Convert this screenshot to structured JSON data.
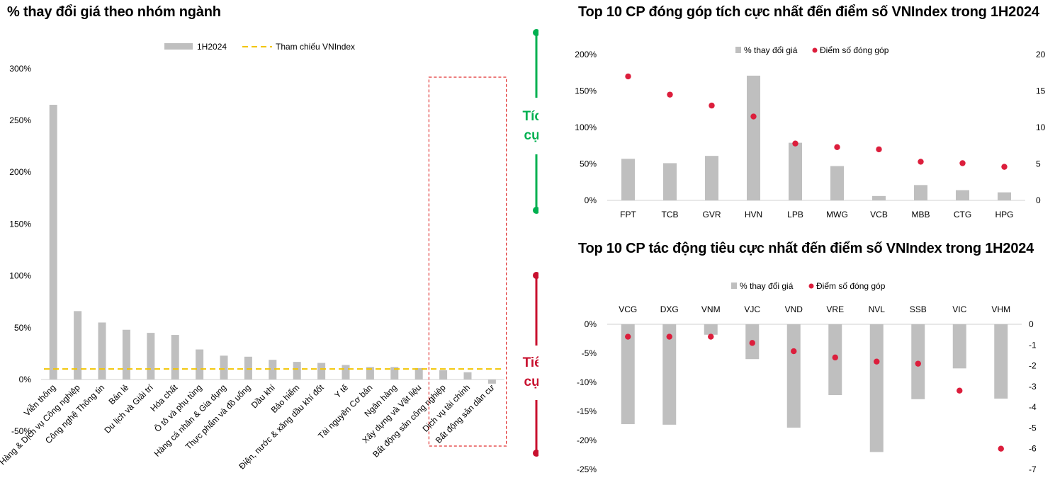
{
  "chart_data": [
    {
      "type": "bar",
      "title": "% thay đổi giá theo nhóm ngành",
      "legend": [
        "1H2024",
        "Tham chiếu VNIndex"
      ],
      "legend_placement": "top-center",
      "categories": [
        "Viễn thông",
        "Hàng & Dịch vụ Công nghiệp",
        "Công nghệ Thông tin",
        "Bán lẻ",
        "Du lịch và Giải trí",
        "Hóa chất",
        "Ô tô và phụ tùng",
        "Hàng cá nhân & Gia dụng",
        "Thực phẩm và đồ uống",
        "Dầu khí",
        "Bảo hiểm",
        "Điện, nước & xăng dầu khí đốt",
        "Y tế",
        "Tài nguyên Cơ bản",
        "Ngân hàng",
        "Xây dựng và Vật liệu",
        "Bất động sản công nghiệp",
        "Dịch vụ tài chính",
        "Bất động sản dân cư"
      ],
      "values": [
        265,
        66,
        55,
        48,
        45,
        43,
        29,
        23,
        22,
        19,
        17,
        16,
        14,
        12,
        12,
        11,
        9,
        7,
        -4
      ],
      "reference_line": 10.2,
      "yticks": [
        "300%",
        "250%",
        "200%",
        "150%",
        "100%",
        "50%",
        "0%",
        "-50%"
      ],
      "ylim": [
        -50,
        300
      ],
      "highlight": {
        "from_category": "Bất động sản công nghiệp",
        "to_category": "Bất động sản dân cư"
      },
      "side_labels": {
        "positive": [
          "Tích",
          "cực"
        ],
        "negative": [
          "Tiêu",
          "cực"
        ]
      },
      "colors": {
        "bar": "#bfbfbf",
        "reference": "#f2c500",
        "highlight": "#e03030",
        "positive": "#00b050",
        "negative": "#c8102e"
      }
    },
    {
      "type": "bar",
      "title": "Top 10 CP đóng góp tích cực nhất đến điểm số VNIndex trong 1H2024",
      "legend": [
        "% thay đổi giá",
        "Điểm số đóng góp"
      ],
      "legend_placement": "top-center",
      "categories": [
        "FPT",
        "TCB",
        "GVR",
        "HVN",
        "LPB",
        "MWG",
        "VCB",
        "MBB",
        "CTG",
        "HPG"
      ],
      "series": [
        {
          "name": "% thay đổi giá",
          "values": [
            57,
            51,
            61,
            171,
            79,
            47,
            6,
            21,
            14,
            11
          ]
        },
        {
          "name": "Điểm số đóng góp",
          "values": [
            17,
            14.5,
            13,
            11.5,
            7.8,
            7.3,
            7.0,
            5.3,
            5.1,
            4.6
          ]
        }
      ],
      "yticks_left": [
        "200%",
        "150%",
        "100%",
        "50%",
        "0%"
      ],
      "yticks_right": [
        "20",
        "15",
        "10",
        "5",
        "0"
      ],
      "ylim_left": [
        0,
        200
      ],
      "ylim_right": [
        0,
        20
      ],
      "colors": {
        "bar": "#bfbfbf",
        "dot": "#dc1e3c"
      }
    },
    {
      "type": "bar",
      "title": "Top 10 CP tác động tiêu cực nhất đến điểm số VNIndex trong 1H2024",
      "legend": [
        "% thay đổi giá",
        "Điểm số đóng góp"
      ],
      "legend_placement": "top-center",
      "categories": [
        "VCG",
        "DXG",
        "VNM",
        "VJC",
        "VND",
        "VRE",
        "NVL",
        "SSB",
        "VIC",
        "VHM"
      ],
      "series": [
        {
          "name": "% thay đổi giá",
          "values": [
            -17.2,
            -17.3,
            -1.8,
            -6.0,
            -17.8,
            -12.2,
            -22.0,
            -12.9,
            -7.6,
            -12.8
          ]
        },
        {
          "name": "Điểm số đóng góp",
          "values": [
            -0.6,
            -0.6,
            -0.6,
            -0.9,
            -1.3,
            -1.6,
            -1.8,
            -1.9,
            -3.2,
            -6.0
          ]
        }
      ],
      "yticks_left": [
        "0%",
        "-5%",
        "-10%",
        "-15%",
        "-20%",
        "-25%"
      ],
      "yticks_right": [
        "0",
        "-1",
        "-2",
        "-3",
        "-4",
        "-5",
        "-6",
        "-7"
      ],
      "ylim_left": [
        -25,
        0
      ],
      "ylim_right": [
        -7,
        0
      ],
      "colors": {
        "bar": "#bfbfbf",
        "dot": "#dc1e3c"
      }
    }
  ]
}
